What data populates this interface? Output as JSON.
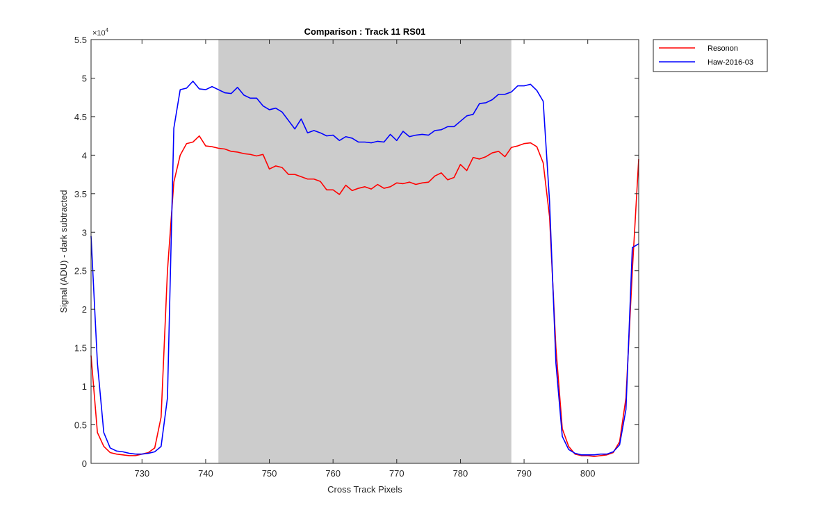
{
  "chart_data": {
    "type": "line",
    "title": "Comparison : Track 11  RS01",
    "xlabel": "Cross Track Pixels",
    "ylabel": "Signal (ADU) - dark subtracted",
    "y_exponent_label": "×10",
    "y_exponent_power": "4",
    "xlim": [
      722,
      808
    ],
    "ylim": [
      0,
      5.5
    ],
    "x_ticks": [
      730,
      740,
      750,
      760,
      770,
      780,
      790,
      800
    ],
    "y_ticks": [
      0,
      0.5,
      1,
      1.5,
      2,
      2.5,
      3,
      3.5,
      4,
      4.5,
      5,
      5.5
    ],
    "x_tick_labels": [
      "730",
      "740",
      "750",
      "760",
      "770",
      "780",
      "790",
      "800"
    ],
    "y_tick_labels": [
      "0",
      "0.5",
      "1",
      "1.5",
      "2",
      "2.5",
      "3",
      "3.5",
      "4",
      "4.5",
      "5",
      "5.5"
    ],
    "shaded_region": {
      "x_start": 742,
      "x_end": 788,
      "color": "#cccccc"
    },
    "grid": false,
    "legend_position": "outside-top-right",
    "x": [
      722,
      723,
      724,
      725,
      726,
      727,
      728,
      729,
      730,
      731,
      732,
      733,
      734,
      735,
      736,
      737,
      738,
      739,
      740,
      741,
      742,
      743,
      744,
      745,
      746,
      747,
      748,
      749,
      750,
      751,
      752,
      753,
      754,
      755,
      756,
      757,
      758,
      759,
      760,
      761,
      762,
      763,
      764,
      765,
      766,
      767,
      768,
      769,
      770,
      771,
      772,
      773,
      774,
      775,
      776,
      777,
      778,
      779,
      780,
      781,
      782,
      783,
      784,
      785,
      786,
      787,
      788,
      789,
      790,
      791,
      792,
      793,
      794,
      795,
      796,
      797,
      798,
      799,
      800,
      801,
      802,
      803,
      804,
      805,
      806,
      807,
      808
    ],
    "series": [
      {
        "name": "Resonon",
        "color": "#ff0000",
        "values": [
          1.4,
          0.4,
          0.22,
          0.14,
          0.12,
          0.11,
          0.1,
          0.1,
          0.12,
          0.14,
          0.2,
          0.6,
          2.5,
          3.65,
          4.0,
          4.15,
          4.17,
          4.25,
          4.12,
          4.11,
          4.09,
          4.08,
          4.05,
          4.04,
          4.02,
          4.01,
          3.99,
          4.01,
          3.82,
          3.86,
          3.84,
          3.75,
          3.75,
          3.72,
          3.69,
          3.69,
          3.66,
          3.55,
          3.55,
          3.49,
          3.61,
          3.54,
          3.57,
          3.59,
          3.56,
          3.62,
          3.57,
          3.59,
          3.64,
          3.63,
          3.65,
          3.62,
          3.64,
          3.65,
          3.73,
          3.77,
          3.68,
          3.71,
          3.88,
          3.8,
          3.97,
          3.95,
          3.98,
          4.03,
          4.05,
          3.98,
          4.1,
          4.12,
          4.15,
          4.16,
          4.11,
          3.9,
          3.2,
          1.5,
          0.45,
          0.22,
          0.12,
          0.1,
          0.1,
          0.09,
          0.1,
          0.11,
          0.14,
          0.28,
          0.85,
          2.5,
          3.95
        ]
      },
      {
        "name": "Haw-2016-03",
        "color": "#0000ff",
        "values": [
          2.95,
          1.3,
          0.4,
          0.2,
          0.16,
          0.15,
          0.13,
          0.12,
          0.12,
          0.13,
          0.15,
          0.22,
          0.85,
          4.35,
          4.85,
          4.87,
          4.96,
          4.86,
          4.85,
          4.89,
          4.85,
          4.81,
          4.8,
          4.88,
          4.78,
          4.74,
          4.74,
          4.64,
          4.59,
          4.61,
          4.56,
          4.45,
          4.34,
          4.47,
          4.29,
          4.32,
          4.29,
          4.25,
          4.26,
          4.19,
          4.24,
          4.22,
          4.17,
          4.17,
          4.16,
          4.18,
          4.17,
          4.27,
          4.19,
          4.31,
          4.24,
          4.26,
          4.27,
          4.26,
          4.32,
          4.33,
          4.37,
          4.37,
          4.44,
          4.51,
          4.53,
          4.67,
          4.68,
          4.72,
          4.79,
          4.79,
          4.82,
          4.9,
          4.9,
          4.92,
          4.84,
          4.7,
          3.4,
          1.3,
          0.35,
          0.18,
          0.13,
          0.11,
          0.11,
          0.11,
          0.12,
          0.12,
          0.15,
          0.24,
          0.7,
          2.8,
          2.85
        ]
      }
    ]
  },
  "legend": {
    "items": [
      {
        "label": "Resonon",
        "color": "#ff0000"
      },
      {
        "label": "Haw-2016-03",
        "color": "#0000ff"
      }
    ]
  }
}
